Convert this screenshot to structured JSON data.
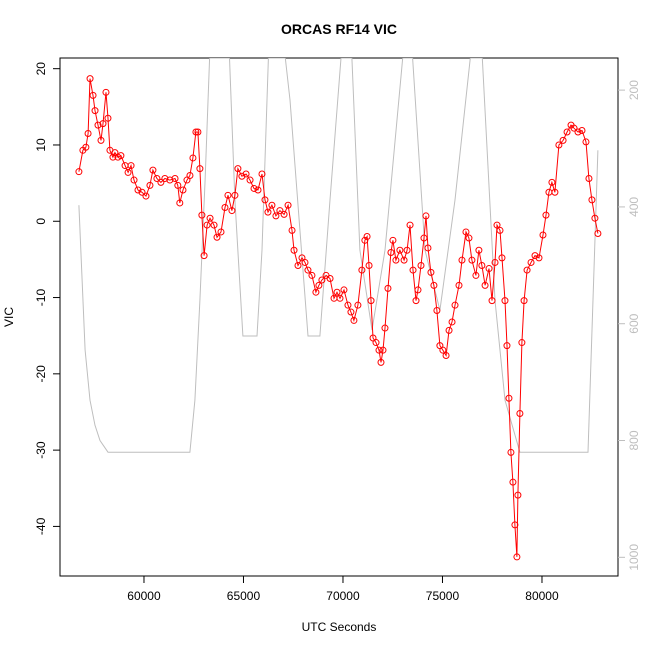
{
  "chart_data": {
    "type": "line",
    "title": "ORCAS RF14 VIC",
    "xlabel": "UTC Seconds",
    "ylabel": "VIC",
    "xlim": [
      55780,
      83820
    ],
    "ylim": [
      -46.5,
      21.4
    ],
    "y2lim": [
      1032,
      145
    ],
    "xticks": [
      60000,
      65000,
      70000,
      75000,
      80000
    ],
    "yticks": [
      -40,
      -30,
      -20,
      -10,
      0,
      10,
      20
    ],
    "y2ticks": [
      200,
      400,
      600,
      800,
      1000
    ],
    "series": [
      {
        "name": "VIC",
        "color": "#ff0000",
        "marker": "circle",
        "x": [
          56730,
          56930,
          57080,
          57190,
          57290,
          57440,
          57540,
          57690,
          57840,
          57940,
          58090,
          58190,
          58290,
          58440,
          58540,
          58690,
          58840,
          59050,
          59200,
          59350,
          59500,
          59700,
          59900,
          60100,
          60300,
          60450,
          60650,
          60850,
          61050,
          61300,
          61560,
          61700,
          61800,
          61960,
          62160,
          62310,
          62460,
          62610,
          62710,
          62810,
          62910,
          63020,
          63170,
          63320,
          63520,
          63670,
          63870,
          64070,
          64220,
          64420,
          64570,
          64720,
          64920,
          65130,
          65330,
          65530,
          65730,
          65930,
          66080,
          66230,
          66430,
          66630,
          66830,
          67040,
          67240,
          67440,
          67540,
          67740,
          67940,
          68090,
          68240,
          68440,
          68640,
          68790,
          68940,
          69150,
          69350,
          69550,
          69700,
          69850,
          70050,
          70250,
          70400,
          70550,
          70750,
          70950,
          71100,
          71210,
          71310,
          71410,
          71510,
          71660,
          71810,
          71910,
          72010,
          72110,
          72260,
          72410,
          72510,
          72660,
          72860,
          73070,
          73220,
          73370,
          73520,
          73670,
          73770,
          73920,
          74070,
          74170,
          74270,
          74420,
          74570,
          74720,
          74870,
          75020,
          75180,
          75330,
          75480,
          75630,
          75830,
          75980,
          76180,
          76330,
          76480,
          76680,
          76830,
          76980,
          77140,
          77340,
          77490,
          77640,
          77740,
          77890,
          77990,
          78140,
          78240,
          78340,
          78440,
          78540,
          78640,
          78740,
          78790,
          78890,
          78990,
          79100,
          79250,
          79450,
          79650,
          79850,
          80050,
          80200,
          80350,
          80500,
          80650,
          80850,
          81060,
          81260,
          81460,
          81610,
          81810,
          82010,
          82210,
          82360,
          82510,
          82660,
          82810
        ],
        "values": [
          6.5,
          9.3,
          9.7,
          11.5,
          18.7,
          16.5,
          14.5,
          12.6,
          10.6,
          12.8,
          16.9,
          13.5,
          9.3,
          8.4,
          9.0,
          8.4,
          8.6,
          7.3,
          6.4,
          7.3,
          5.4,
          4.1,
          3.8,
          3.3,
          4.7,
          6.7,
          5.6,
          5.1,
          5.6,
          5.4,
          5.6,
          4.7,
          2.4,
          4.1,
          5.4,
          6.0,
          8.3,
          11.7,
          11.7,
          6.9,
          0.8,
          -4.5,
          -0.5,
          0.4,
          -0.5,
          -2.1,
          -1.4,
          1.8,
          3.4,
          1.4,
          3.4,
          6.9,
          5.9,
          6.2,
          5.4,
          4.3,
          4.1,
          6.2,
          2.8,
          1.2,
          2.1,
          0.7,
          1.4,
          0.9,
          2.1,
          -1.2,
          -3.8,
          -5.8,
          -4.8,
          -5.4,
          -6.4,
          -7.1,
          -9.3,
          -8.4,
          -7.7,
          -7.1,
          -7.5,
          -10.1,
          -9.3,
          -10.1,
          -9.0,
          -11.0,
          -11.9,
          -13.0,
          -11.0,
          -6.4,
          -2.5,
          -2.0,
          -5.8,
          -10.4,
          -15.3,
          -15.9,
          -16.9,
          -18.5,
          -16.9,
          -14.0,
          -8.8,
          -4.1,
          -2.5,
          -5.1,
          -3.8,
          -5.1,
          -3.8,
          -0.5,
          -6.4,
          -10.4,
          -9.0,
          -5.8,
          -2.2,
          0.7,
          -3.5,
          -6.7,
          -8.4,
          -11.7,
          -16.3,
          -16.9,
          -17.6,
          -14.3,
          -13.2,
          -11.0,
          -8.4,
          -5.1,
          -1.4,
          -2.2,
          -5.1,
          -7.1,
          -3.8,
          -5.8,
          -8.4,
          -6.2,
          -10.4,
          -5.4,
          -0.5,
          -1.2,
          -4.8,
          -10.4,
          -16.3,
          -23.2,
          -30.3,
          -34.2,
          -39.8,
          -44.0,
          -35.9,
          -25.2,
          -15.9,
          -10.4,
          -6.4,
          -5.4,
          -4.5,
          -4.8,
          -1.8,
          0.8,
          3.8,
          5.1,
          3.8,
          10.0,
          10.6,
          11.7,
          12.6,
          12.2,
          11.7,
          11.9,
          10.4,
          5.6,
          2.8,
          0.4,
          -1.6
        ]
      },
      {
        "color": "#bebebe",
        "axis": "y2",
        "x": [
          56730,
          57040,
          57290,
          57540,
          57790,
          58190,
          62310,
          62560,
          62810,
          63070,
          63300,
          64300,
          64570,
          64970,
          65680,
          65930,
          66250,
          67100,
          67340,
          68240,
          68840,
          69350,
          69900,
          70450,
          70850,
          71460,
          72110,
          73000,
          73500,
          74120,
          74870,
          75630,
          76400,
          77000,
          77640,
          78140,
          78890,
          82310,
          82810
        ],
        "values": [
          397,
          645,
          731,
          774,
          800,
          820,
          820,
          731,
          560,
          354,
          145,
          145,
          388,
          621,
          621,
          474,
          145,
          145,
          217,
          621,
          621,
          388,
          145,
          145,
          474,
          611,
          474,
          145,
          145,
          474,
          577,
          388,
          145,
          145,
          560,
          731,
          820,
          820,
          303
        ]
      }
    ]
  }
}
